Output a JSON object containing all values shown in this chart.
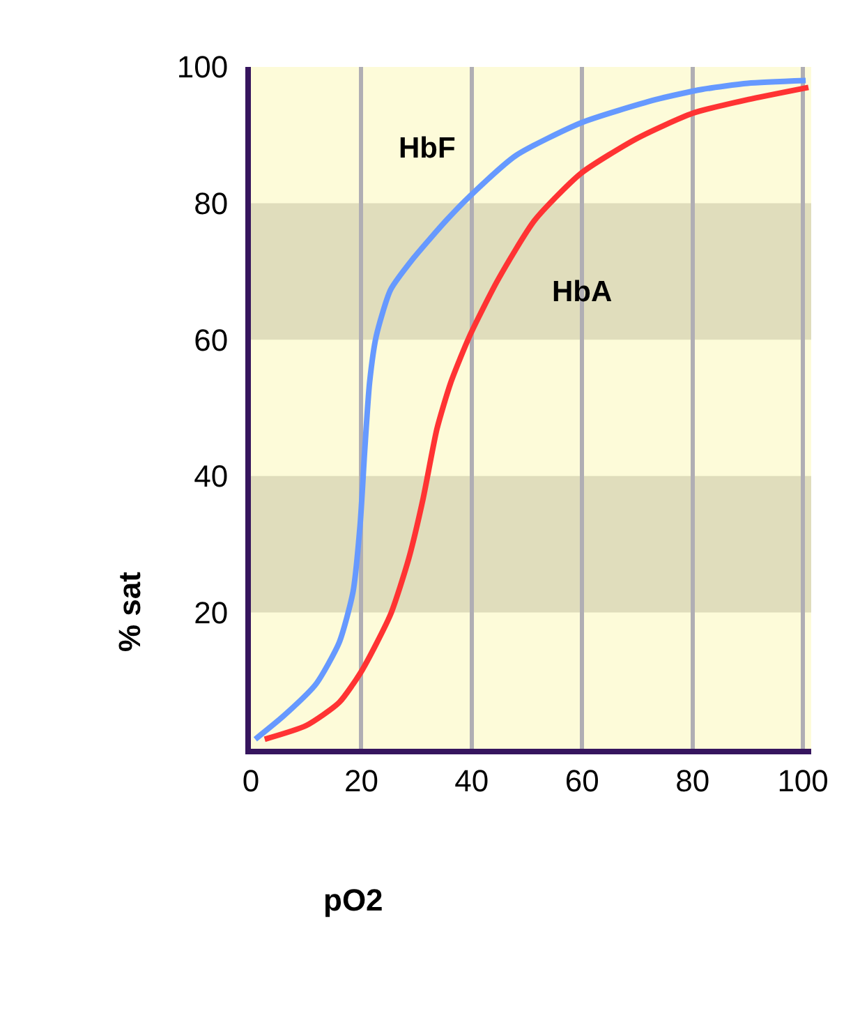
{
  "chart_data": {
    "type": "line",
    "xlabel": "pO2",
    "ylabel": "% sat",
    "xlim": [
      0,
      101.5
    ],
    "ylim": [
      0,
      100
    ],
    "xticks": [
      0,
      20,
      40,
      60,
      80,
      100
    ],
    "yticks": [
      20,
      40,
      60,
      80,
      100
    ],
    "grid": "x",
    "legend": false,
    "marker": "none",
    "line_style": "solid",
    "bands": [
      {
        "axis": "y",
        "from": 20,
        "to": 40,
        "color": "#e0ddbc"
      },
      {
        "axis": "y",
        "from": 60,
        "to": 80,
        "color": "#e0ddbc"
      }
    ],
    "series": [
      {
        "name": "HbF",
        "color": "#6699ff",
        "x": [
          0.8,
          5.9,
          11.8,
          16,
          18.5,
          19.8,
          20.6,
          21.5,
          22.7,
          25.3,
          29.5,
          35.4,
          39.6,
          48,
          59.8,
          73.3,
          81.7,
          90,
          100.5
        ],
        "values": [
          1.4,
          4.8,
          9.5,
          15.6,
          23,
          33,
          43.5,
          53.7,
          60.5,
          67.3,
          72,
          77.5,
          81,
          87,
          91.8,
          95.2,
          96.7,
          97.6,
          98
        ]
      },
      {
        "name": "HbA",
        "color": "#ff3333",
        "x": [
          2.5,
          10,
          16,
          20.2,
          25.3,
          28.6,
          31.2,
          33.7,
          36.2,
          39.6,
          44.7,
          51.4,
          59.8,
          69.9,
          80,
          90,
          101
        ],
        "values": [
          1.4,
          3.4,
          6.8,
          11.6,
          19.7,
          27.9,
          36.7,
          46.9,
          53.7,
          60.5,
          68.7,
          77.5,
          84.4,
          89.5,
          93.2,
          95.2,
          97
        ]
      }
    ]
  }
}
